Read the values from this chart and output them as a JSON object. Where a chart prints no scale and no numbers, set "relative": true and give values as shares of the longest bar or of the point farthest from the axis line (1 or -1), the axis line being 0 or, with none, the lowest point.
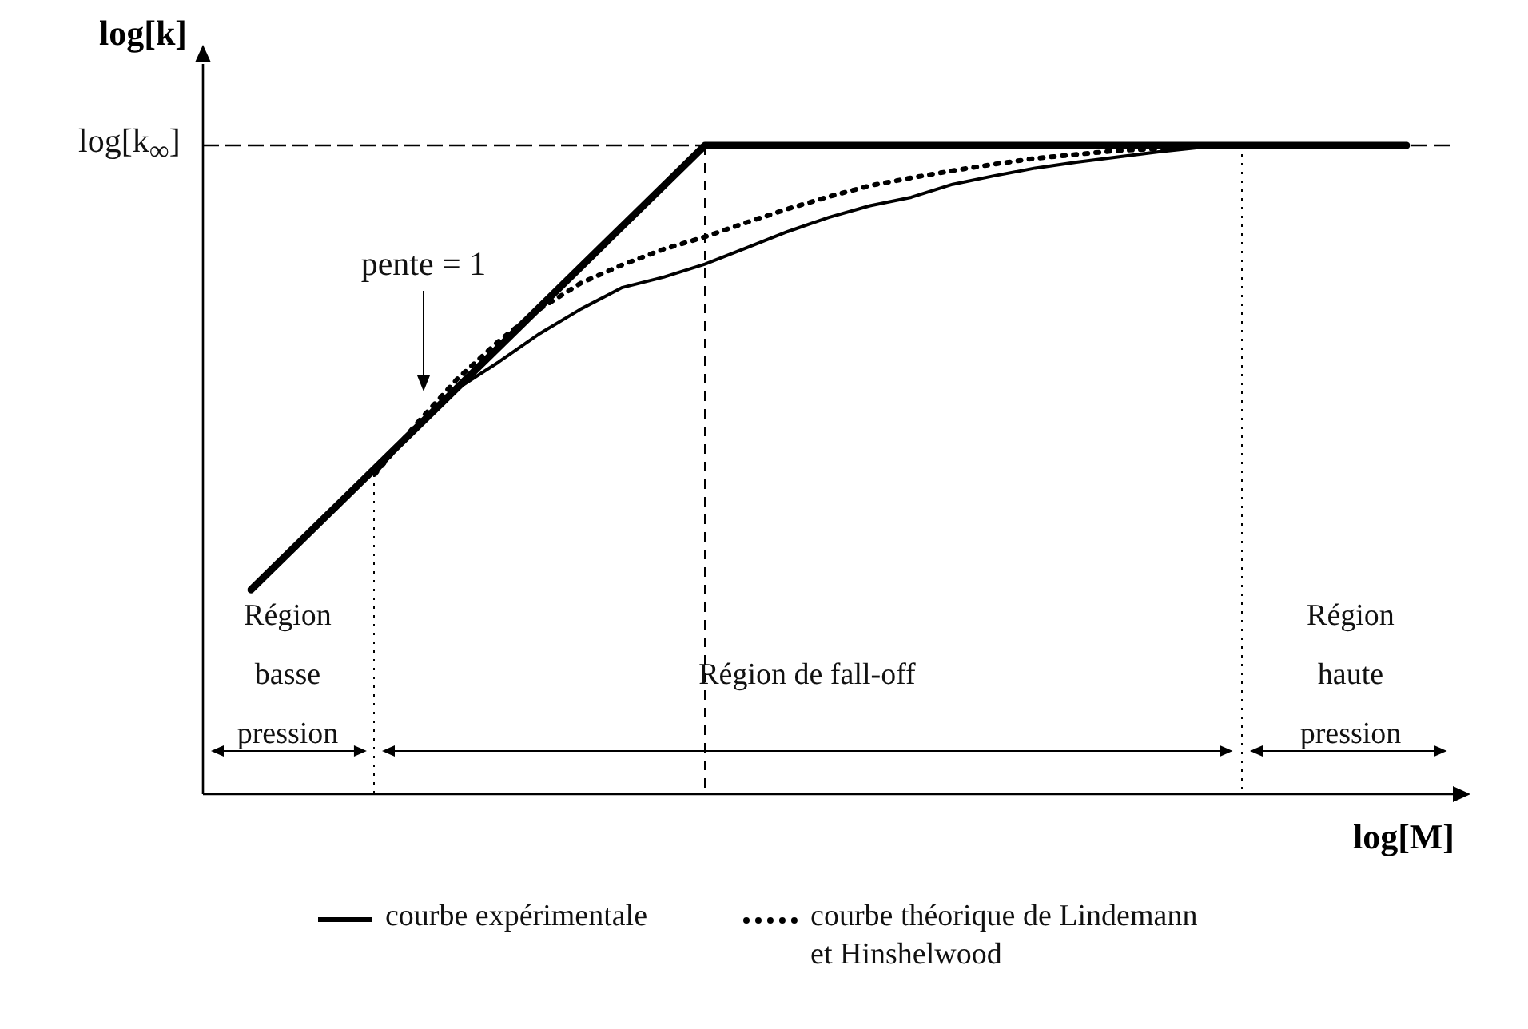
{
  "chart_data": {
    "type": "line",
    "relative": true,
    "xlabel": "log[M]",
    "ylabel": "log[k]",
    "legend": "bottom",
    "categories": [
      null,
      null,
      null,
      null,
      null,
      null,
      null,
      null,
      null,
      null,
      null,
      null,
      null,
      null,
      null,
      null,
      null,
      null,
      null,
      null,
      null,
      null,
      null,
      null,
      null,
      null,
      null,
      null,
      null
    ],
    "series": [
      {
        "color": "#000000",
        "line_style": "solid",
        "values": [
          0.315,
          null,
          null,
          null,
          null,
          null,
          null,
          null,
          null,
          null,
          null,
          1,
          null,
          null,
          null,
          null,
          null,
          null,
          null,
          null,
          null,
          null,
          null,
          null,
          null,
          null,
          null,
          null,
          1
        ]
      },
      {
        "name": "courbe expérimentale",
        "color": "#000000",
        "line_style": "solid",
        "values": [
          null,
          null,
          null,
          0.493,
          0.568,
          0.625,
          0.666,
          0.71,
          0.748,
          0.781,
          0.797,
          0.817,
          0.842,
          0.867,
          0.889,
          0.907,
          0.92,
          0.94,
          0.953,
          0.965,
          0.974,
          0.982,
          0.99,
          0.997,
          1,
          null,
          null,
          null,
          null
        ]
      },
      {
        "name": "courbe théorique de Lindemann et Hinshelwood",
        "color": "#000000",
        "line_style": "dotted",
        "values": [
          null,
          null,
          null,
          0.493,
          0.57,
          0.64,
          0.698,
          0.748,
          0.788,
          0.816,
          0.84,
          0.859,
          0.881,
          0.902,
          0.921,
          0.938,
          0.95,
          0.961,
          0.971,
          0.98,
          0.986,
          0.992,
          0.995,
          0.998,
          1,
          null,
          null,
          null,
          null
        ]
      }
    ],
    "ref_lines": [
      {
        "axis": "y",
        "value": 1,
        "label": "log[k$_{∞}$]",
        "line_style": "dashed"
      }
    ],
    "annotations": [
      "pente = 1",
      "Région basse pression",
      "Région de fall-off",
      "Région haute pression"
    ]
  }
}
